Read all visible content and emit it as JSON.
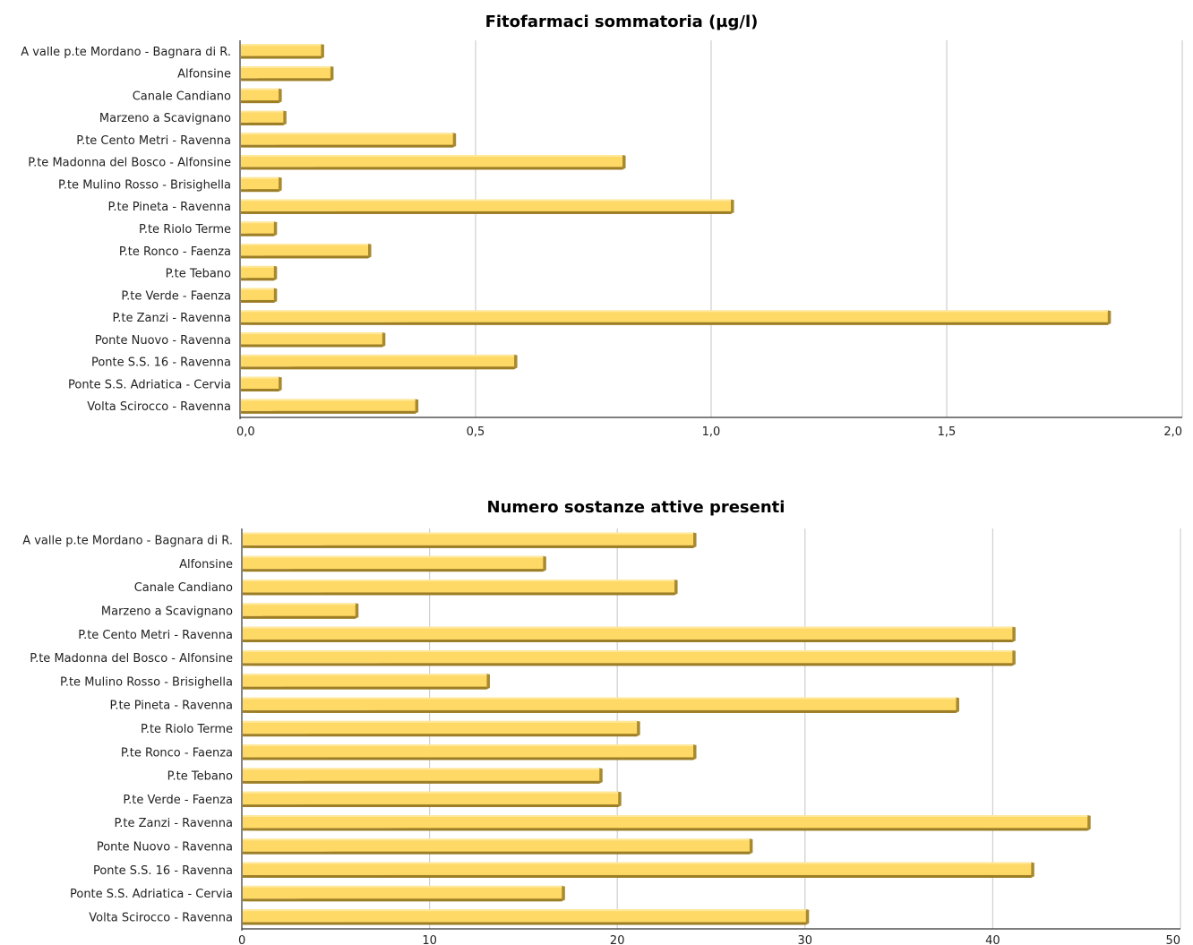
{
  "chart_data": [
    {
      "type": "bar",
      "orientation": "horizontal",
      "title": "Fitofarmaci sommatoria (µg/l)",
      "categories": [
        "A valle p.te Mordano - Bagnara di R.",
        "Alfonsine",
        "Canale Candiano",
        "Marzeno a Scavignano",
        "P.te Cento Metri - Ravenna",
        "P.te Madonna del Bosco - Alfonsine",
        "P.te Mulino Rosso - Brisighella",
        "P.te Pineta - Ravenna",
        "P.te Riolo Terme",
        "P.te Ronco - Faenza",
        "P.te Tebano",
        "P.te Verde - Faenza",
        "P.te Zanzi - Ravenna",
        "Ponte Nuovo - Ravenna",
        "Ponte S.S. 16 - Ravenna",
        "Ponte S.S. Adriatica - Cervia",
        "Volta Scirocco - Ravenna"
      ],
      "values": [
        0.17,
        0.19,
        0.08,
        0.09,
        0.45,
        0.81,
        0.08,
        1.04,
        0.07,
        0.27,
        0.07,
        0.07,
        1.84,
        0.3,
        0.58,
        0.08,
        0.37
      ],
      "xlim": [
        0,
        2
      ],
      "ticks": [
        "0,0",
        "0,5",
        "1,0",
        "1,5",
        "2,0"
      ],
      "tick_values": [
        0,
        0.5,
        1.0,
        1.5,
        2.0
      ],
      "grid": true,
      "bar_color": "#FFD966"
    },
    {
      "type": "bar",
      "orientation": "horizontal",
      "title": "Numero sostanze attive presenti",
      "categories": [
        "A valle p.te Mordano - Bagnara di R.",
        "Alfonsine",
        "Canale Candiano",
        "Marzeno a Scavignano",
        "P.te Cento Metri - Ravenna",
        "P.te Madonna del Bosco - Alfonsine",
        "P.te Mulino Rosso - Brisighella",
        "P.te Pineta - Ravenna",
        "P.te Riolo Terme",
        "P.te Ronco - Faenza",
        "P.te Tebano",
        "P.te Verde - Faenza",
        "P.te Zanzi - Ravenna",
        "Ponte Nuovo - Ravenna",
        "Ponte S.S. 16 - Ravenna",
        "Ponte S.S. Adriatica - Cervia",
        "Volta Scirocco - Ravenna"
      ],
      "values": [
        24,
        16,
        23,
        6,
        41,
        41,
        13,
        38,
        21,
        24,
        19,
        20,
        45,
        27,
        42,
        17,
        30
      ],
      "xlim": [
        0,
        50
      ],
      "ticks": [
        "0",
        "10",
        "20",
        "30",
        "40",
        "50"
      ],
      "tick_values": [
        0,
        10,
        20,
        30,
        40,
        50
      ],
      "grid": true,
      "bar_color": "#FFD966"
    }
  ]
}
